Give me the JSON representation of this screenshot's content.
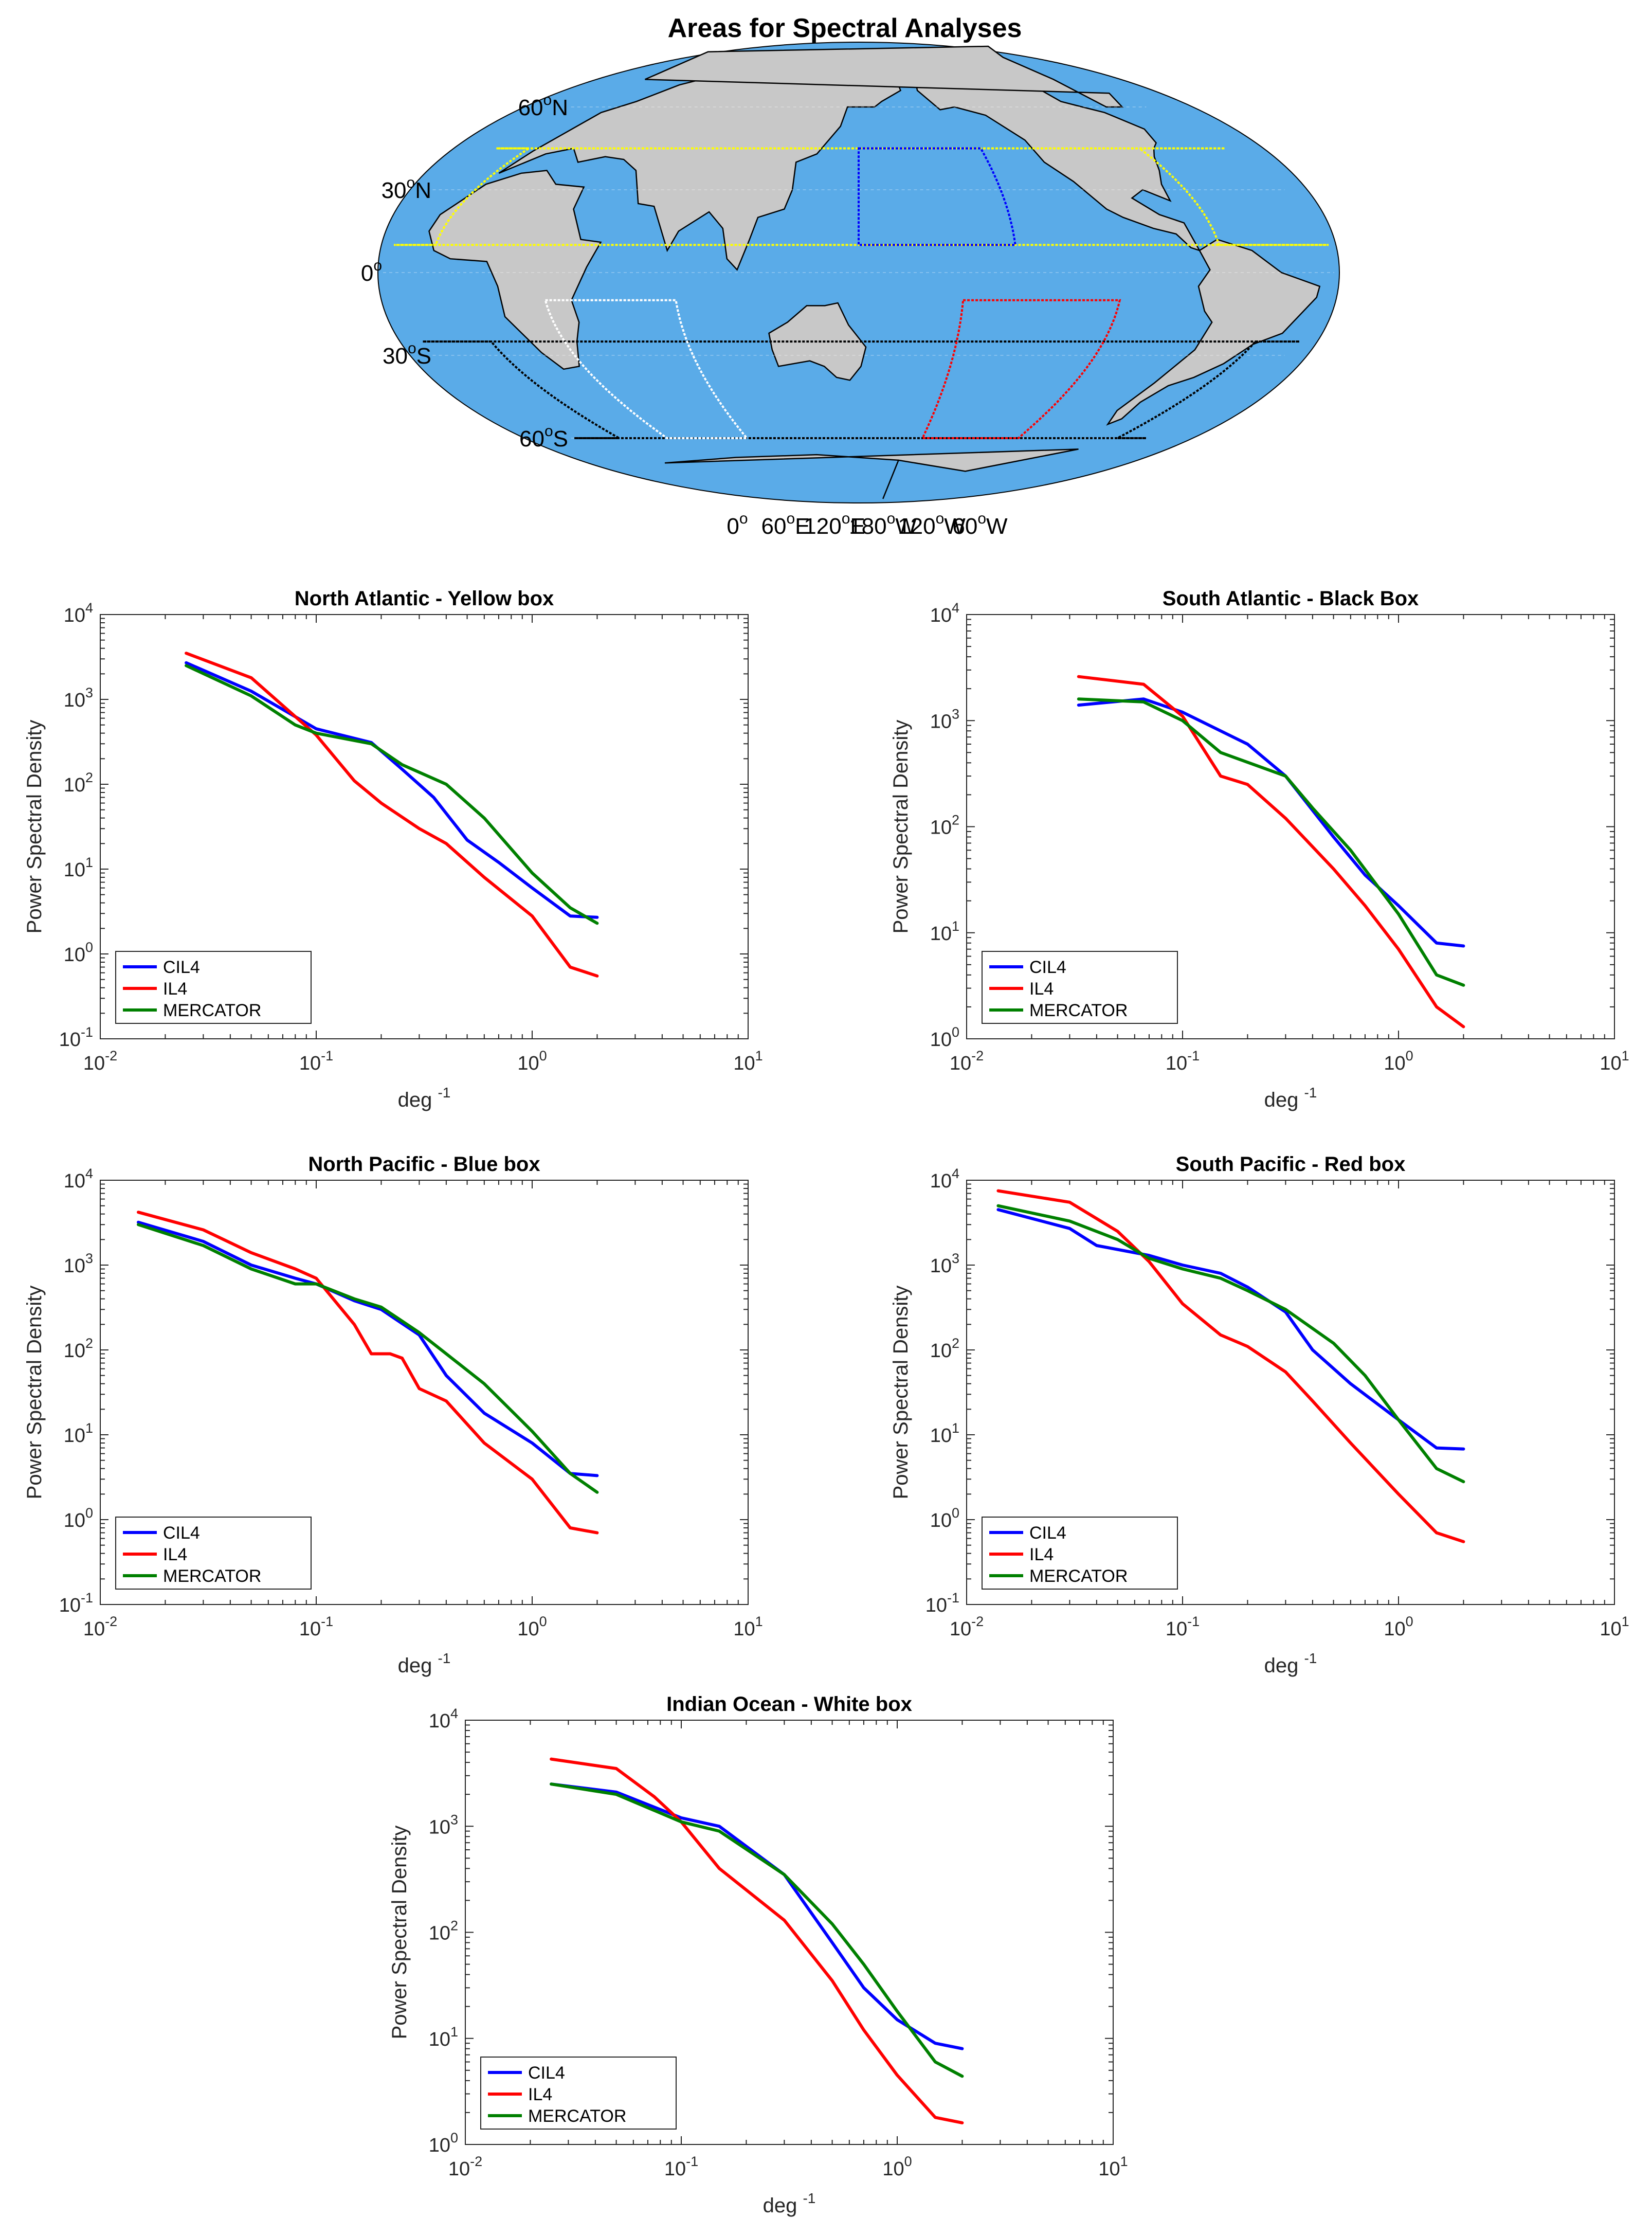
{
  "map": {
    "title": "Areas for Spectral Analyses",
    "lat_labels": [
      {
        "deg": "60",
        "sup": "o",
        "hemi": "N",
        "lat": 60
      },
      {
        "deg": "30",
        "sup": "o",
        "hemi": "N",
        "lat": 30
      },
      {
        "deg": "0",
        "sup": "o",
        "hemi": "",
        "lat": 0
      },
      {
        "deg": "30",
        "sup": "o",
        "hemi": "S",
        "lat": -30
      },
      {
        "deg": "60",
        "sup": "o",
        "hemi": "S",
        "lat": -60
      }
    ],
    "lon_labels": [
      {
        "deg": "0",
        "sup": "o",
        "hemi": "",
        "lon": 0
      },
      {
        "deg": "60",
        "sup": "o",
        "hemi": "E",
        "lon": 60
      },
      {
        "deg": "120",
        "sup": "o",
        "hemi": "E",
        "lon": 120
      },
      {
        "deg": "180",
        "sup": "o",
        "hemi": "W",
        "lon": 180
      },
      {
        "deg": "120",
        "sup": "o",
        "hemi": "W",
        "lon": 240
      },
      {
        "deg": "60",
        "sup": "o",
        "hemi": "W",
        "lon": 300
      }
    ],
    "boxes": [
      {
        "name": "North Atlantic",
        "color": "#ffff00",
        "lon": [
          288,
          348
        ],
        "lat": [
          10,
          45
        ]
      },
      {
        "name": "South Atlantic",
        "color": "#000000",
        "lon": [
          312,
          360
        ],
        "lat": [
          -60,
          -25
        ]
      },
      {
        "name": "North Pacific",
        "color": "#0000ff",
        "lon": [
          150,
          210
        ],
        "lat": [
          10,
          45
        ]
      },
      {
        "name": "South Pacific",
        "color": "#ff0000",
        "lon": [
          190,
          250
        ],
        "lat": [
          -60,
          -10
        ]
      },
      {
        "name": "Indian Ocean",
        "color": "#ffffff",
        "lon": [
          30,
          80
        ],
        "lat": [
          -60,
          -10
        ]
      }
    ],
    "colors": {
      "ocean": "#5aabe8",
      "land": "#c8c8c8",
      "coast": "#000000"
    }
  },
  "chart_data": [
    {
      "type": "line",
      "title": "North Atlantic - Yellow box",
      "xlabel": "deg",
      "xlabel_sup": "-1",
      "ylabel": "Power Spectral Density",
      "xscale": "log",
      "yscale": "log",
      "xlim": [
        0.01,
        10
      ],
      "ylim": [
        0.1,
        10000
      ],
      "xticks": [
        {
          "base": "10",
          "exp": "-2"
        },
        {
          "base": "10",
          "exp": "-1"
        },
        {
          "base": "10",
          "exp": "0"
        },
        {
          "base": "10",
          "exp": "1"
        }
      ],
      "yticks": [
        {
          "base": "10",
          "exp": "-1"
        },
        {
          "base": "10",
          "exp": "0"
        },
        {
          "base": "10",
          "exp": "1"
        },
        {
          "base": "10",
          "exp": "2"
        },
        {
          "base": "10",
          "exp": "3"
        },
        {
          "base": "10",
          "exp": "4"
        }
      ],
      "legend_position": "bottom-left",
      "series": [
        {
          "name": "CIL4",
          "color": "#0000ff",
          "x": [
            0.025,
            0.05,
            0.1,
            0.18,
            0.25,
            0.35,
            0.5,
            0.7,
            1.0,
            1.5,
            2.0
          ],
          "y": [
            2700,
            1250,
            450,
            310,
            150,
            70,
            22,
            12,
            6,
            2.8,
            2.7
          ]
        },
        {
          "name": "IL4",
          "color": "#ff0000",
          "x": [
            0.025,
            0.05,
            0.1,
            0.15,
            0.2,
            0.3,
            0.4,
            0.6,
            1.0,
            1.5,
            2.0
          ],
          "y": [
            3500,
            1800,
            380,
            110,
            60,
            30,
            20,
            8,
            2.8,
            0.7,
            0.55
          ]
        },
        {
          "name": "MERCATOR",
          "color": "#008000",
          "x": [
            0.025,
            0.05,
            0.08,
            0.1,
            0.18,
            0.25,
            0.4,
            0.6,
            1.0,
            1.5,
            2.0
          ],
          "y": [
            2500,
            1100,
            500,
            400,
            300,
            170,
            100,
            40,
            9,
            3.5,
            2.3
          ]
        }
      ]
    },
    {
      "type": "line",
      "title": "South Atlantic - Black Box",
      "xlabel": "deg",
      "xlabel_sup": "-1",
      "ylabel": "Power Spectral Density",
      "xscale": "log",
      "yscale": "log",
      "xlim": [
        0.01,
        10
      ],
      "ylim": [
        1,
        10000
      ],
      "xticks": [
        {
          "base": "10",
          "exp": "-2"
        },
        {
          "base": "10",
          "exp": "-1"
        },
        {
          "base": "10",
          "exp": "0"
        },
        {
          "base": "10",
          "exp": "1"
        }
      ],
      "yticks": [
        {
          "base": "10",
          "exp": "0"
        },
        {
          "base": "10",
          "exp": "1"
        },
        {
          "base": "10",
          "exp": "2"
        },
        {
          "base": "10",
          "exp": "3"
        },
        {
          "base": "10",
          "exp": "4"
        }
      ],
      "legend_position": "bottom-left",
      "series": [
        {
          "name": "CIL4",
          "color": "#0000ff",
          "x": [
            0.033,
            0.066,
            0.1,
            0.2,
            0.3,
            0.5,
            0.7,
            1.0,
            1.5,
            2.0
          ],
          "y": [
            1400,
            1600,
            1200,
            600,
            300,
            80,
            35,
            18,
            8,
            7.5
          ]
        },
        {
          "name": "IL4",
          "color": "#ff0000",
          "x": [
            0.033,
            0.066,
            0.1,
            0.15,
            0.2,
            0.3,
            0.5,
            0.7,
            1.0,
            1.5,
            2.0
          ],
          "y": [
            2600,
            2200,
            1100,
            300,
            250,
            120,
            40,
            18,
            7,
            2,
            1.3
          ]
        },
        {
          "name": "MERCATOR",
          "color": "#008000",
          "x": [
            0.033,
            0.066,
            0.1,
            0.15,
            0.3,
            0.4,
            0.6,
            1.0,
            1.5,
            2.0
          ],
          "y": [
            1600,
            1500,
            1000,
            500,
            300,
            150,
            60,
            15,
            4,
            3.2
          ]
        }
      ]
    },
    {
      "type": "line",
      "title": "North Pacific - Blue box",
      "xlabel": "deg",
      "xlabel_sup": "-1",
      "ylabel": "Power Spectral Density",
      "xscale": "log",
      "yscale": "log",
      "xlim": [
        0.01,
        10
      ],
      "ylim": [
        0.1,
        10000
      ],
      "xticks": [
        {
          "base": "10",
          "exp": "-2"
        },
        {
          "base": "10",
          "exp": "-1"
        },
        {
          "base": "10",
          "exp": "0"
        },
        {
          "base": "10",
          "exp": "1"
        }
      ],
      "yticks": [
        {
          "base": "10",
          "exp": "-1"
        },
        {
          "base": "10",
          "exp": "0"
        },
        {
          "base": "10",
          "exp": "1"
        },
        {
          "base": "10",
          "exp": "2"
        },
        {
          "base": "10",
          "exp": "3"
        },
        {
          "base": "10",
          "exp": "4"
        }
      ],
      "legend_position": "bottom-left",
      "series": [
        {
          "name": "CIL4",
          "color": "#0000ff",
          "x": [
            0.015,
            0.03,
            0.05,
            0.08,
            0.1,
            0.15,
            0.2,
            0.3,
            0.4,
            0.6,
            1.0,
            1.5,
            2.0
          ],
          "y": [
            3200,
            1900,
            1000,
            700,
            600,
            380,
            300,
            150,
            50,
            18,
            8,
            3.5,
            3.3
          ]
        },
        {
          "name": "IL4",
          "color": "#ff0000",
          "x": [
            0.015,
            0.03,
            0.05,
            0.08,
            0.1,
            0.15,
            0.18,
            0.22,
            0.25,
            0.3,
            0.4,
            0.6,
            1.0,
            1.5,
            2.0
          ],
          "y": [
            4200,
            2600,
            1400,
            900,
            700,
            200,
            90,
            90,
            80,
            35,
            25,
            8,
            3,
            0.8,
            0.7
          ]
        },
        {
          "name": "MERCATOR",
          "color": "#008000",
          "x": [
            0.015,
            0.03,
            0.05,
            0.08,
            0.1,
            0.15,
            0.2,
            0.3,
            0.4,
            0.6,
            1.0,
            1.5,
            2.0
          ],
          "y": [
            3000,
            1700,
            900,
            600,
            600,
            400,
            320,
            160,
            90,
            40,
            11,
            3.5,
            2.1
          ]
        }
      ]
    },
    {
      "type": "line",
      "title": "South Pacific - Red box",
      "xlabel": "deg",
      "xlabel_sup": "-1",
      "ylabel": "Power Spectral Density",
      "xscale": "log",
      "yscale": "log",
      "xlim": [
        0.01,
        10
      ],
      "ylim": [
        0.1,
        10000
      ],
      "xticks": [
        {
          "base": "10",
          "exp": "-2"
        },
        {
          "base": "10",
          "exp": "-1"
        },
        {
          "base": "10",
          "exp": "0"
        },
        {
          "base": "10",
          "exp": "1"
        }
      ],
      "yticks": [
        {
          "base": "10",
          "exp": "-1"
        },
        {
          "base": "10",
          "exp": "0"
        },
        {
          "base": "10",
          "exp": "1"
        },
        {
          "base": "10",
          "exp": "2"
        },
        {
          "base": "10",
          "exp": "3"
        },
        {
          "base": "10",
          "exp": "4"
        }
      ],
      "legend_position": "bottom-left",
      "series": [
        {
          "name": "CIL4",
          "color": "#0000ff",
          "x": [
            0.014,
            0.03,
            0.04,
            0.07,
            0.1,
            0.15,
            0.2,
            0.3,
            0.4,
            0.6,
            1.0,
            1.5,
            2.0
          ],
          "y": [
            4500,
            2700,
            1700,
            1300,
            1000,
            800,
            550,
            280,
            100,
            40,
            15,
            7,
            6.8
          ]
        },
        {
          "name": "IL4",
          "color": "#ff0000",
          "x": [
            0.014,
            0.03,
            0.05,
            0.07,
            0.1,
            0.15,
            0.2,
            0.3,
            0.4,
            0.6,
            1.0,
            1.5,
            2.0
          ],
          "y": [
            7500,
            5500,
            2500,
            1100,
            350,
            150,
            110,
            55,
            25,
            8,
            2,
            0.7,
            0.55
          ]
        },
        {
          "name": "MERCATOR",
          "color": "#008000",
          "x": [
            0.014,
            0.03,
            0.05,
            0.07,
            0.1,
            0.15,
            0.2,
            0.3,
            0.5,
            0.7,
            1.0,
            1.5,
            2.0
          ],
          "y": [
            5000,
            3300,
            2000,
            1200,
            900,
            700,
            500,
            300,
            120,
            50,
            15,
            4,
            2.8
          ]
        }
      ]
    },
    {
      "type": "line",
      "title": "Indian Ocean - White box",
      "xlabel": "deg",
      "xlabel_sup": "-1",
      "ylabel": "Power Spectral Density",
      "xscale": "log",
      "yscale": "log",
      "xlim": [
        0.01,
        10
      ],
      "ylim": [
        1,
        10000
      ],
      "xticks": [
        {
          "base": "10",
          "exp": "-2"
        },
        {
          "base": "10",
          "exp": "-1"
        },
        {
          "base": "10",
          "exp": "0"
        },
        {
          "base": "10",
          "exp": "1"
        }
      ],
      "yticks": [
        {
          "base": "10",
          "exp": "0"
        },
        {
          "base": "10",
          "exp": "1"
        },
        {
          "base": "10",
          "exp": "2"
        },
        {
          "base": "10",
          "exp": "3"
        },
        {
          "base": "10",
          "exp": "4"
        }
      ],
      "legend_position": "bottom-left",
      "series": [
        {
          "name": "CIL4",
          "color": "#0000ff",
          "x": [
            0.025,
            0.05,
            0.1,
            0.15,
            0.3,
            0.5,
            0.7,
            1.0,
            1.5,
            2.0
          ],
          "y": [
            2500,
            2100,
            1200,
            1000,
            350,
            80,
            30,
            15,
            9,
            8
          ]
        },
        {
          "name": "IL4",
          "color": "#ff0000",
          "x": [
            0.025,
            0.05,
            0.075,
            0.1,
            0.15,
            0.3,
            0.5,
            0.7,
            1.0,
            1.5,
            2.0
          ],
          "y": [
            4300,
            3500,
            1900,
            1100,
            400,
            130,
            35,
            12,
            4.5,
            1.8,
            1.6
          ]
        },
        {
          "name": "MERCATOR",
          "color": "#008000",
          "x": [
            0.025,
            0.05,
            0.1,
            0.15,
            0.3,
            0.5,
            0.7,
            1.0,
            1.5,
            2.0
          ],
          "y": [
            2500,
            2000,
            1100,
            900,
            350,
            120,
            50,
            18,
            6,
            4.4
          ]
        }
      ]
    }
  ]
}
